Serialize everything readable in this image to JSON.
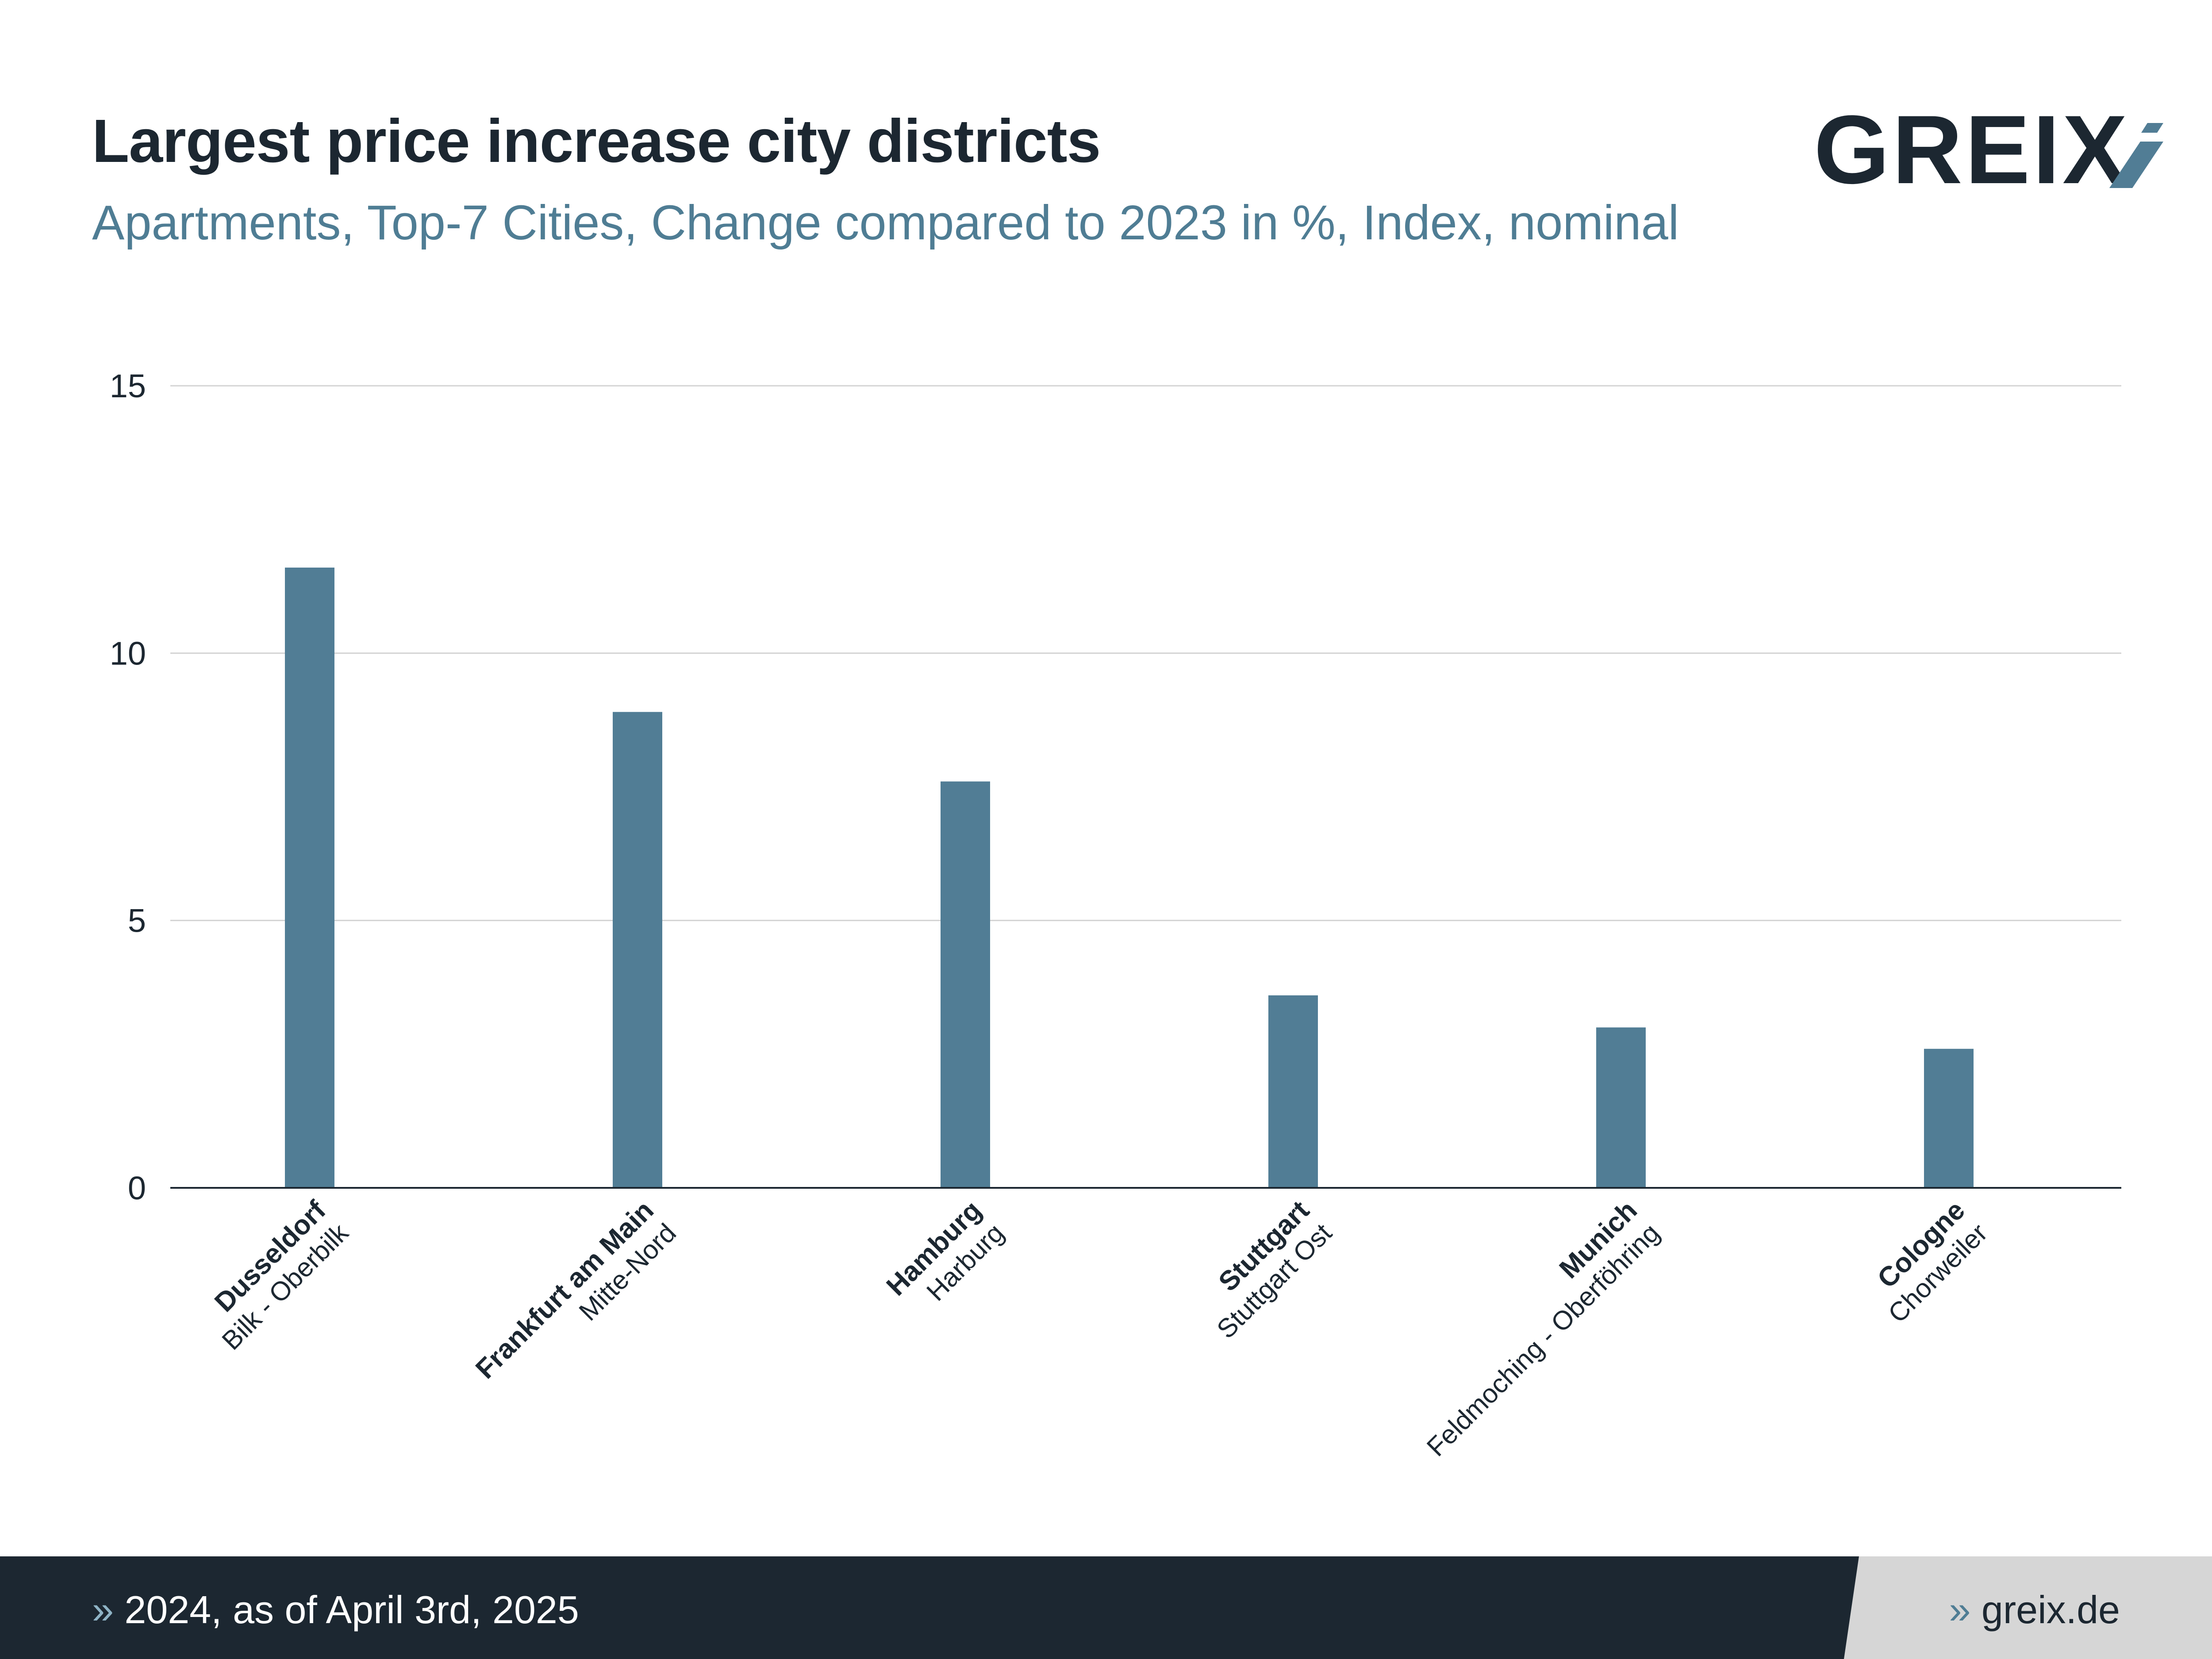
{
  "header": {
    "title": "Largest price increase city districts",
    "subtitle": "Apartments, Top-7 Cities, Change compared to 2023 in %, Index, nominal"
  },
  "logo": {
    "text": "GREIX"
  },
  "colors": {
    "bar": "#517d95",
    "title": "#1c2731",
    "subtitle": "#4f7d94",
    "footer_dark": "#1c2731",
    "footer_light": "#d6d6d6"
  },
  "chart_data": {
    "type": "bar",
    "categories": [
      {
        "city": "Dusseldorf",
        "district": "Bilk - Oberbilk"
      },
      {
        "city": "Frankfurt am Main",
        "district": "Mitte-Nord"
      },
      {
        "city": "Hamburg",
        "district": "Harburg"
      },
      {
        "city": "Stuttgart",
        "district": "Stuttgart Ost"
      },
      {
        "city": "Munich",
        "district": "Feldmoching - Oberföhring"
      },
      {
        "city": "Cologne",
        "district": "Chorweiler"
      }
    ],
    "values": [
      11.6,
      8.9,
      7.6,
      3.6,
      3.0,
      2.6
    ],
    "ylim": [
      0,
      15
    ],
    "yticks": [
      0,
      5,
      10,
      15
    ],
    "grid": true,
    "title": "Largest price increase city districts",
    "xlabel": "",
    "ylabel": ""
  },
  "footer": {
    "left_chevron": "»",
    "left_text": "2024, as of April 3rd, 2025",
    "right_chevron": "»",
    "right_text": "greix.de"
  }
}
